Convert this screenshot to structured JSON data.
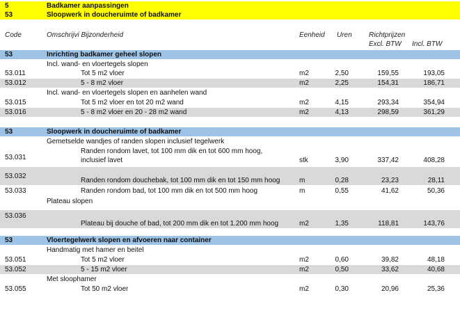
{
  "title": {
    "number": "5",
    "text": "Badkamer aanpassingen",
    "sub_number": "53",
    "sub_text": "Sloopwerk in doucheruimte of badkamer"
  },
  "header": {
    "code": "Code",
    "description": "Omschrijvi Bijzonderheid",
    "unit": "Eenheid",
    "hours": "Uren",
    "price_title": "Richtprijzen",
    "excl": "Excl. BTW",
    "incl": "Incl. BTW"
  },
  "sections": [
    {
      "code": "53",
      "title": "Inrichting badkamer geheel slopen",
      "group1": "Incl. wand- en vloertegels slopen",
      "items1": [
        {
          "code": "53.011",
          "desc": "Tot 5 m2 vloer",
          "unit": "m2",
          "hours": "2,50",
          "excl": "159,55",
          "incl": "193,05"
        },
        {
          "code": "53.012",
          "desc": "5 - 8 m2 vloer",
          "unit": "m2",
          "hours": "2,25",
          "excl": "154,31",
          "incl": "186,71"
        }
      ],
      "group2": "Incl. wand- en vloertegels slopen en aanhelen wand",
      "items2": [
        {
          "code": "53.015",
          "desc": "Tot 5 m2 vloer en tot 20 m2 wand",
          "unit": "m2",
          "hours": "4,15",
          "excl": "293,34",
          "incl": "354,94"
        },
        {
          "code": "53.016",
          "desc": "5 - 8 m2 vloer en 20 - 28 m2 wand",
          "unit": "m2",
          "hours": "4,13",
          "excl": "298,59",
          "incl": "361,29"
        }
      ]
    },
    {
      "code": "53",
      "title": "Sloopwerk in doucheruimte of badkamer",
      "group1": "Gemetselde wandjes of randen slopen inclusief tegelwerk",
      "items1": [
        {
          "code": "53.031",
          "desc_line1": "Randen rondom lavet, tot 100 mm dik en tot 600 mm hoog,",
          "desc_line2": "inclusief lavet",
          "unit": "stk",
          "hours": "3,90",
          "excl": "337,42",
          "incl": "408,28"
        },
        {
          "code": "53.032",
          "desc": "Randen rondom douchebak, tot 100 mm dik en tot 150 mm hoog",
          "unit": "m",
          "hours": "0,28",
          "excl": "23,23",
          "incl": "28,11"
        },
        {
          "code": "53.033",
          "desc": "Randen rondom bad, tot 100 mm dik en tot 500 mm hoog",
          "unit": "m",
          "hours": "0,55",
          "excl": "41,62",
          "incl": "50,36"
        }
      ],
      "group2": "Plateau slopen",
      "items2": [
        {
          "code": "53.036",
          "desc": "Plateau bij douche of bad, tot 200 mm dik en tot 1.200 mm hoog",
          "unit": "m2",
          "hours": "1,35",
          "excl": "118,81",
          "incl": "143,76"
        }
      ]
    },
    {
      "code": "53",
      "title": "Vloertegelwerk slopen en afvoeren naar container",
      "group1": "Handmatig met hamer en beitel",
      "items1": [
        {
          "code": "53.051",
          "desc": "Tot 5 m2 vloer",
          "unit": "m2",
          "hours": "0,60",
          "excl": "39,82",
          "incl": "48,18"
        },
        {
          "code": "53.052",
          "desc": "5 - 15 m2 vloer",
          "unit": "m2",
          "hours": "0,50",
          "excl": "33,62",
          "incl": "40,68"
        }
      ],
      "group2": "Met sloophamer",
      "items2": [
        {
          "code": "53.055",
          "desc": "Tot 50 m2 vloer",
          "unit": "m2",
          "hours": "0,30",
          "excl": "20,96",
          "incl": "25,36"
        }
      ]
    }
  ]
}
